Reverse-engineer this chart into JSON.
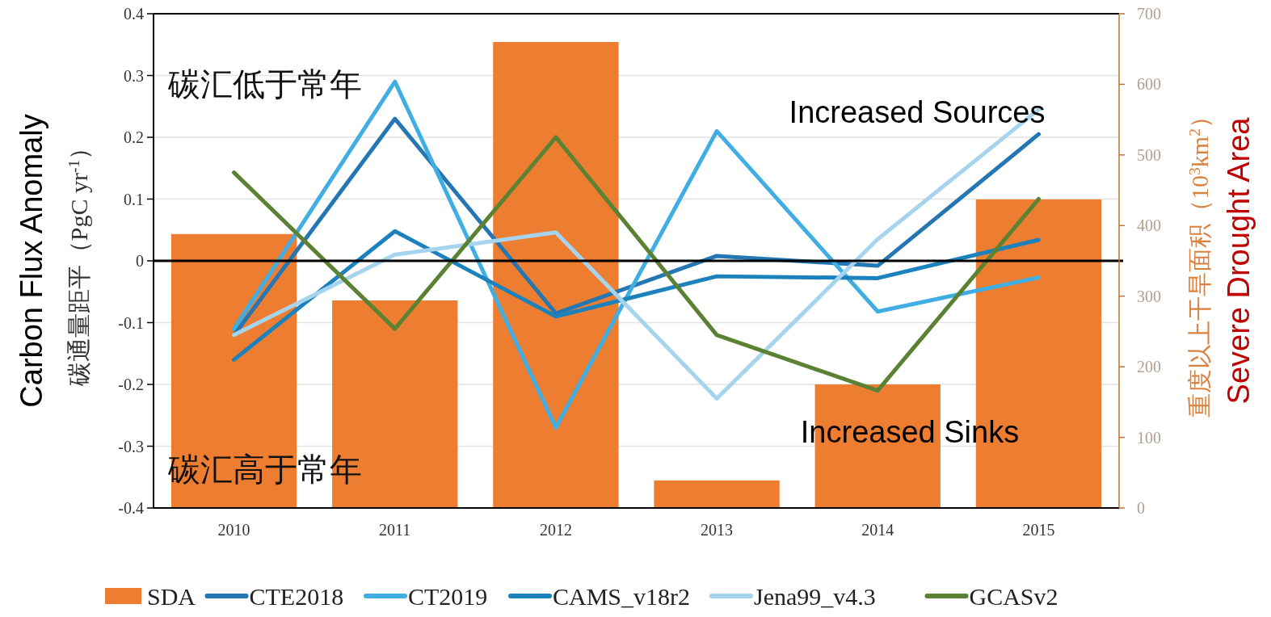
{
  "chart_data": {
    "type": "line",
    "categories": [
      "2010",
      "2011",
      "2012",
      "2013",
      "2014",
      "2015"
    ],
    "series": [
      {
        "name": "SDA",
        "type": "bar",
        "axis": "y2",
        "color": "#ed7d31",
        "values": [
          388,
          294,
          660,
          39,
          175,
          437
        ]
      },
      {
        "name": "CTE2018",
        "color": "#2477b3",
        "values": [
          -0.12,
          0.23,
          -0.085,
          0.008,
          -0.008,
          0.205
        ]
      },
      {
        "name": "CT2019",
        "color": "#41aee3",
        "values": [
          -0.11,
          0.29,
          -0.27,
          0.21,
          -0.082,
          -0.027
        ]
      },
      {
        "name": "CAMS_v18r2",
        "color": "#1b82bd",
        "values": [
          -0.16,
          0.048,
          -0.09,
          -0.025,
          -0.028,
          0.034
        ]
      },
      {
        "name": "Jena99_v4.3",
        "color": "#a6d4ee",
        "values": [
          -0.12,
          0.01,
          0.046,
          -0.223,
          0.035,
          0.245
        ]
      },
      {
        "name": "GCASv2",
        "color": "#5b8233",
        "values": [
          0.143,
          -0.11,
          0.2,
          -0.12,
          -0.21,
          0.1
        ]
      }
    ],
    "ylim": [
      -0.4,
      0.4
    ],
    "yticks": [
      -0.4,
      -0.3,
      -0.2,
      -0.1,
      0,
      0.1,
      0.2,
      0.3,
      0.4
    ],
    "y2lim": [
      0,
      700
    ],
    "y2ticks": [
      0,
      100,
      200,
      300,
      400,
      500,
      600,
      700
    ],
    "ylabel": "碳通量距平（PgC yr$^{-1}$）",
    "y2label": "重度以上干旱面积（10$^{3}$km$^{2}$）",
    "ref_lines": [
      {
        "axis": "y",
        "value": 0,
        "color": "#000000"
      }
    ],
    "annotations": [
      "碳汇低于常年",
      "碳汇高于常年",
      "Increased Sources",
      "Increased Sinks",
      "Carbon Flux Anomaly",
      "Severe Drought Area"
    ],
    "grid": "y",
    "legend": "bottom"
  }
}
